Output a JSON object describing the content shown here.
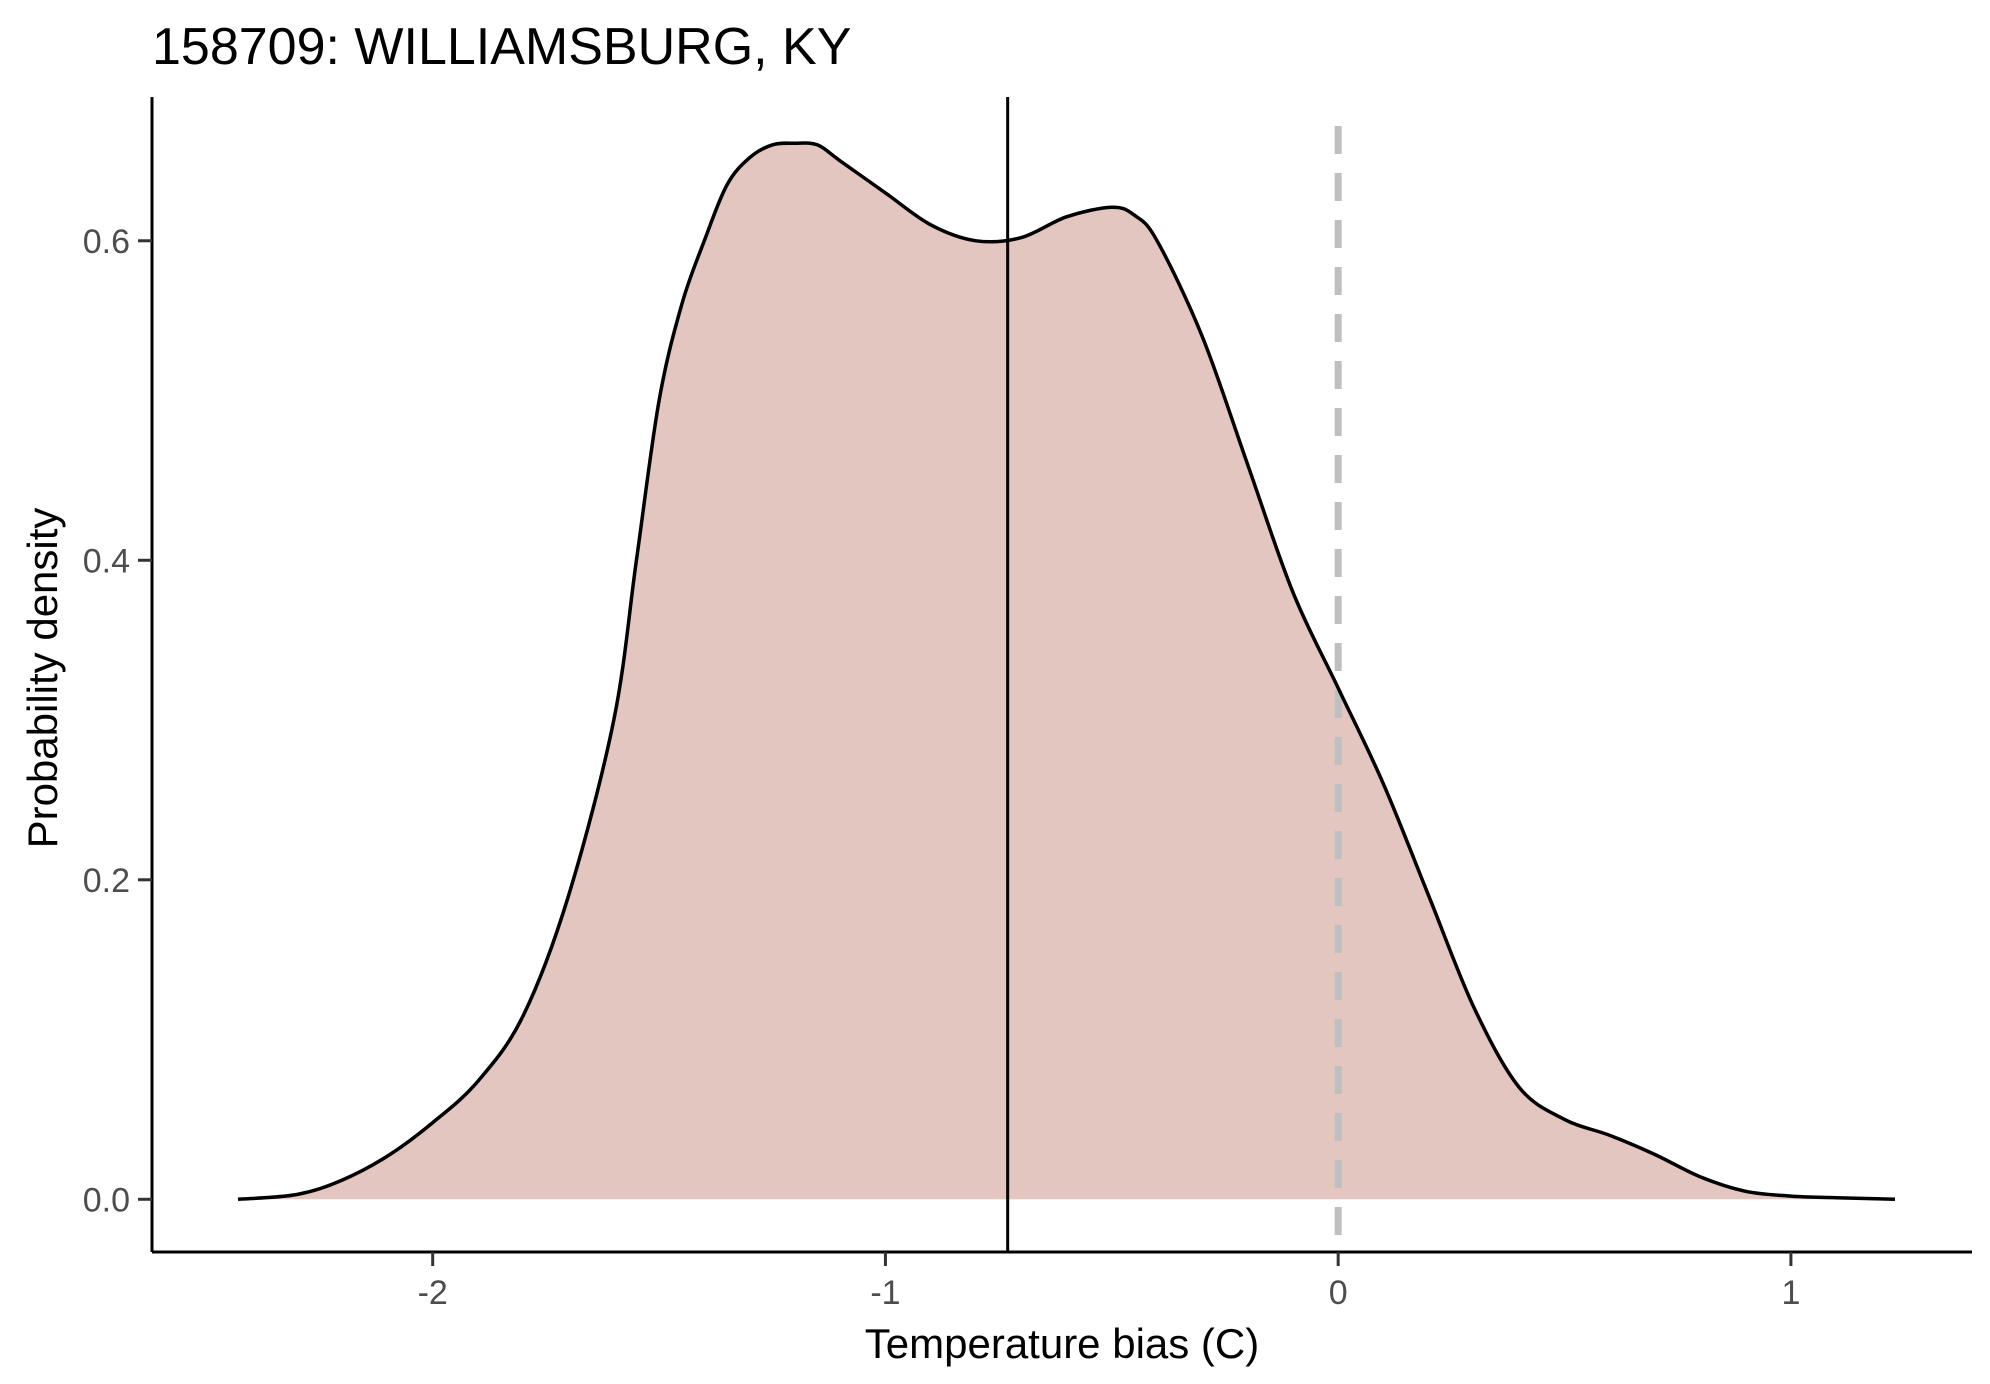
{
  "chart_data": {
    "type": "area",
    "title": "158709: WILLIAMSBURG, KY",
    "xlabel": "Temperature bias (C)",
    "ylabel": "Probability density",
    "xlim": [
      -2.62,
      1.4
    ],
    "ylim": [
      -0.033,
      0.69
    ],
    "x_ticks": [
      -2,
      -1,
      0,
      1
    ],
    "x_tick_labels": [
      "-2",
      "-1",
      "0",
      "1"
    ],
    "y_ticks": [
      0.0,
      0.2,
      0.4,
      0.6
    ],
    "y_tick_labels": [
      "0.0",
      "0.2",
      "0.4",
      "0.6"
    ],
    "grid": false,
    "legend": "none",
    "density_curve": {
      "x": [
        -2.43,
        -2.3,
        -2.2,
        -2.1,
        -2.0,
        -1.9,
        -1.8,
        -1.7,
        -1.6,
        -1.55,
        -1.5,
        -1.45,
        -1.4,
        -1.35,
        -1.3,
        -1.25,
        -1.2,
        -1.15,
        -1.1,
        -1.0,
        -0.9,
        -0.8,
        -0.7,
        -0.6,
        -0.5,
        -0.45,
        -0.4,
        -0.3,
        -0.2,
        -0.1,
        0.0,
        0.1,
        0.2,
        0.3,
        0.4,
        0.5,
        0.6,
        0.7,
        0.8,
        0.9,
        1.0,
        1.1,
        1.23
      ],
      "y": [
        0.0,
        0.003,
        0.012,
        0.027,
        0.048,
        0.074,
        0.115,
        0.19,
        0.3,
        0.4,
        0.5,
        0.56,
        0.6,
        0.635,
        0.652,
        0.66,
        0.661,
        0.66,
        0.65,
        0.63,
        0.61,
        0.6,
        0.602,
        0.615,
        0.621,
        0.616,
        0.6,
        0.54,
        0.46,
        0.38,
        0.32,
        0.26,
        0.19,
        0.12,
        0.07,
        0.05,
        0.04,
        0.028,
        0.014,
        0.005,
        0.002,
        0.001,
        0.0
      ],
      "fill_color": "#e3c6bf",
      "line_color": "#000000"
    },
    "reference_lines": [
      {
        "orientation": "vertical",
        "x": -0.73,
        "style": "solid",
        "color": "#000000"
      },
      {
        "orientation": "vertical",
        "x": 0.0,
        "style": "dashed",
        "color": "#bfbfbf"
      }
    ]
  }
}
